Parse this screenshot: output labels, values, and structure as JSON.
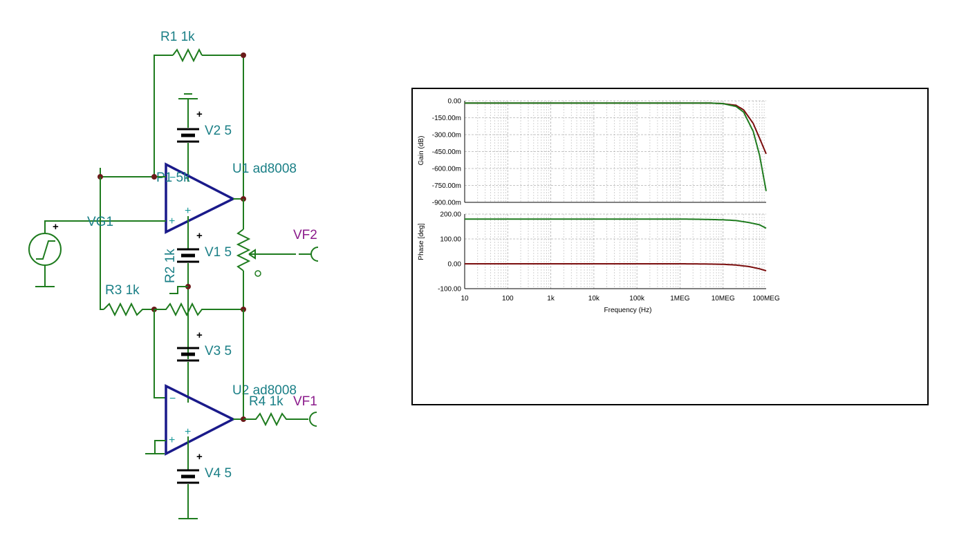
{
  "schematic": {
    "components": {
      "r1": "R1 1k",
      "v2": "V2 5",
      "u1": "U1 ad8008",
      "p1": "P1 5k",
      "vg1": "VG1",
      "v1": "V1 5",
      "vf2": "VF2",
      "r2": "R2 1k",
      "r3": "R3 1k",
      "v3": "V3 5",
      "u2": "U2 ad8008",
      "r4": "R4 1k",
      "vf1": "VF1",
      "v4": "V4 5"
    },
    "pin_minus": "−",
    "pin_plus": "+",
    "polarity_mark": "+",
    "colors": {
      "wire": "#1e7b1e",
      "opamp": "#1a1a8a",
      "label": "#1a7f86",
      "probe_label": "#8b1a8b",
      "node": "#6b1a1a"
    }
  },
  "chart_data": [
    {
      "type": "line",
      "xscale": "log",
      "xlim": [
        10,
        100000000
      ],
      "xticks": [
        "10",
        "100",
        "1k",
        "10k",
        "100k",
        "1MEG",
        "10MEG",
        "100MEG"
      ],
      "xlabel": "",
      "ylabel": "Gain (dB)",
      "ylim": [
        -0.9,
        0
      ],
      "yticks": [
        "0.00",
        "-150.00m",
        "-300.00m",
        "-450.00m",
        "-600.00m",
        "-750.00m",
        "-900.00m"
      ],
      "grid": true,
      "series": [
        {
          "color": "#7a0c0c",
          "x": [
            10,
            1000000,
            5000000,
            10000000,
            20000000,
            30000000,
            50000000,
            70000000,
            100000000
          ],
          "values": [
            -0.02,
            -0.02,
            -0.02,
            -0.025,
            -0.04,
            -0.08,
            -0.2,
            -0.33,
            -0.47
          ]
        },
        {
          "color": "#1e7b1e",
          "x": [
            10,
            1000000,
            5000000,
            10000000,
            20000000,
            30000000,
            50000000,
            70000000,
            100000000
          ],
          "values": [
            -0.02,
            -0.02,
            -0.02,
            -0.025,
            -0.05,
            -0.1,
            -0.27,
            -0.48,
            -0.8
          ]
        }
      ]
    },
    {
      "type": "line",
      "xscale": "log",
      "xlim": [
        10,
        100000000
      ],
      "xticks": [
        "10",
        "100",
        "1k",
        "10k",
        "100k",
        "1MEG",
        "10MEG",
        "100MEG"
      ],
      "xlabel": "Frequency (Hz)",
      "ylabel": "Phase [deg]",
      "ylim": [
        -100,
        200
      ],
      "yticks": [
        "200.00",
        "100.00",
        "0.00",
        "-100.00"
      ],
      "grid": true,
      "series": [
        {
          "color": "#1e7b1e",
          "x": [
            10,
            1000000,
            3000000,
            10000000,
            20000000,
            40000000,
            70000000,
            100000000
          ],
          "values": [
            180,
            180,
            179,
            177,
            174,
            166,
            157,
            143
          ]
        },
        {
          "color": "#7a0c0c",
          "x": [
            10,
            1000000,
            3000000,
            10000000,
            20000000,
            40000000,
            70000000,
            100000000
          ],
          "values": [
            0,
            0,
            -0.5,
            -2,
            -5,
            -11,
            -20,
            -28
          ]
        }
      ]
    }
  ]
}
